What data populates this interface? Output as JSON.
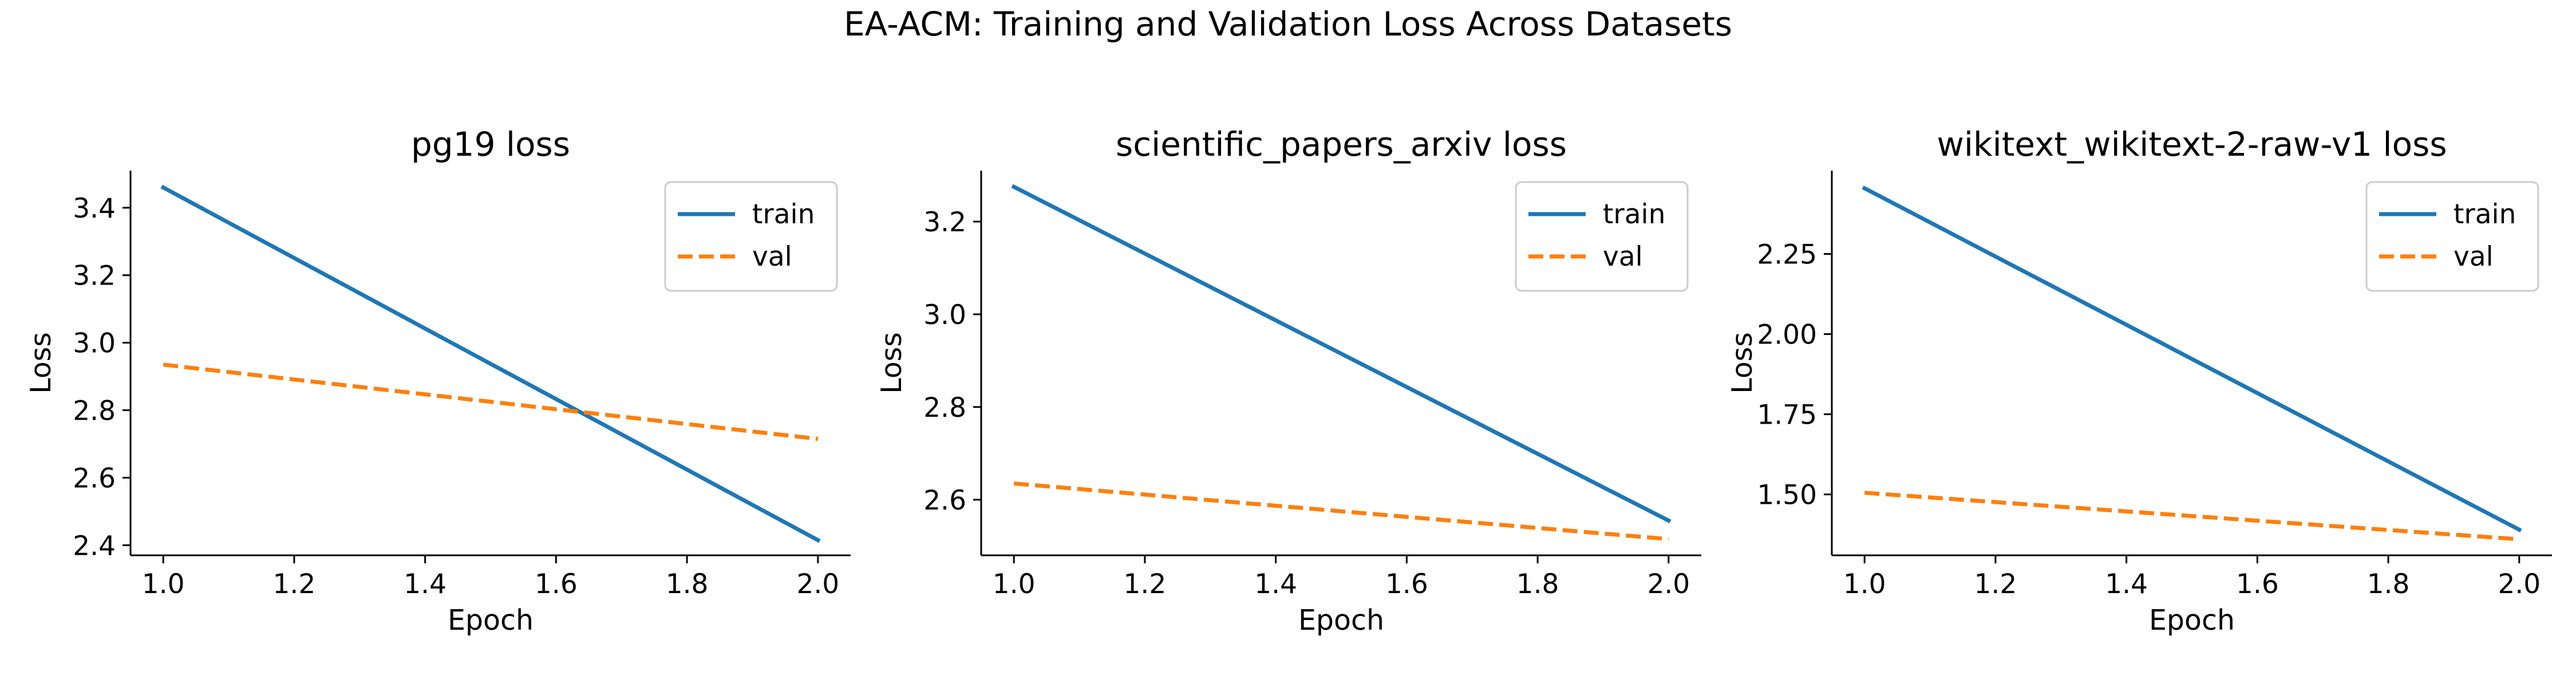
{
  "suptitle": "EA-ACM: Training and Validation Loss Across Datasets",
  "colors": {
    "train": "#1f77b4",
    "val": "#ff7f0e",
    "axis": "#000000",
    "legend_border": "#cccccc"
  },
  "chart_data": [
    {
      "type": "line",
      "title": "pg19 loss",
      "xlabel": "Epoch",
      "ylabel": "Loss",
      "xlim": [
        0.95,
        2.05
      ],
      "ylim": [
        2.37,
        3.51
      ],
      "xticks": [
        "1.0",
        "1.2",
        "1.4",
        "1.6",
        "1.8",
        "2.0"
      ],
      "yticks": [
        "2.4",
        "2.6",
        "2.8",
        "3.0",
        "3.2",
        "3.4"
      ],
      "grid": false,
      "legend": "top-right",
      "series": [
        {
          "name": "train",
          "style": "solid",
          "x": [
            1.0,
            2.0
          ],
          "y": [
            3.46,
            2.415
          ]
        },
        {
          "name": "val",
          "style": "dashed",
          "x": [
            1.0,
            2.0
          ],
          "y": [
            2.935,
            2.715
          ]
        }
      ]
    },
    {
      "type": "line",
      "title": "scientific_papers_arxiv loss",
      "xlabel": "Epoch",
      "ylabel": "Loss",
      "xlim": [
        0.95,
        2.05
      ],
      "ylim": [
        2.48,
        3.31
      ],
      "xticks": [
        "1.0",
        "1.2",
        "1.4",
        "1.6",
        "1.8",
        "2.0"
      ],
      "yticks": [
        "2.6",
        "2.8",
        "3.0",
        "3.2"
      ],
      "grid": false,
      "legend": "top-right",
      "series": [
        {
          "name": "train",
          "style": "solid",
          "x": [
            1.0,
            2.0
          ],
          "y": [
            3.275,
            2.555
          ]
        },
        {
          "name": "val",
          "style": "dashed",
          "x": [
            1.0,
            2.0
          ],
          "y": [
            2.635,
            2.515
          ]
        }
      ]
    },
    {
      "type": "line",
      "title": "wikitext_wikitext-2-raw-v1 loss",
      "xlabel": "Epoch",
      "ylabel": "Loss",
      "xlim": [
        0.95,
        2.05
      ],
      "ylim": [
        1.31,
        2.51
      ],
      "xticks": [
        "1.0",
        "1.2",
        "1.4",
        "1.6",
        "1.8",
        "2.0"
      ],
      "yticks": [
        "1.50",
        "1.75",
        "2.00",
        "2.25"
      ],
      "grid": false,
      "legend": "top-right",
      "series": [
        {
          "name": "train",
          "style": "solid",
          "x": [
            1.0,
            2.0
          ],
          "y": [
            2.455,
            1.39
          ]
        },
        {
          "name": "val",
          "style": "dashed",
          "x": [
            1.0,
            2.0
          ],
          "y": [
            1.505,
            1.36
          ]
        }
      ]
    }
  ]
}
